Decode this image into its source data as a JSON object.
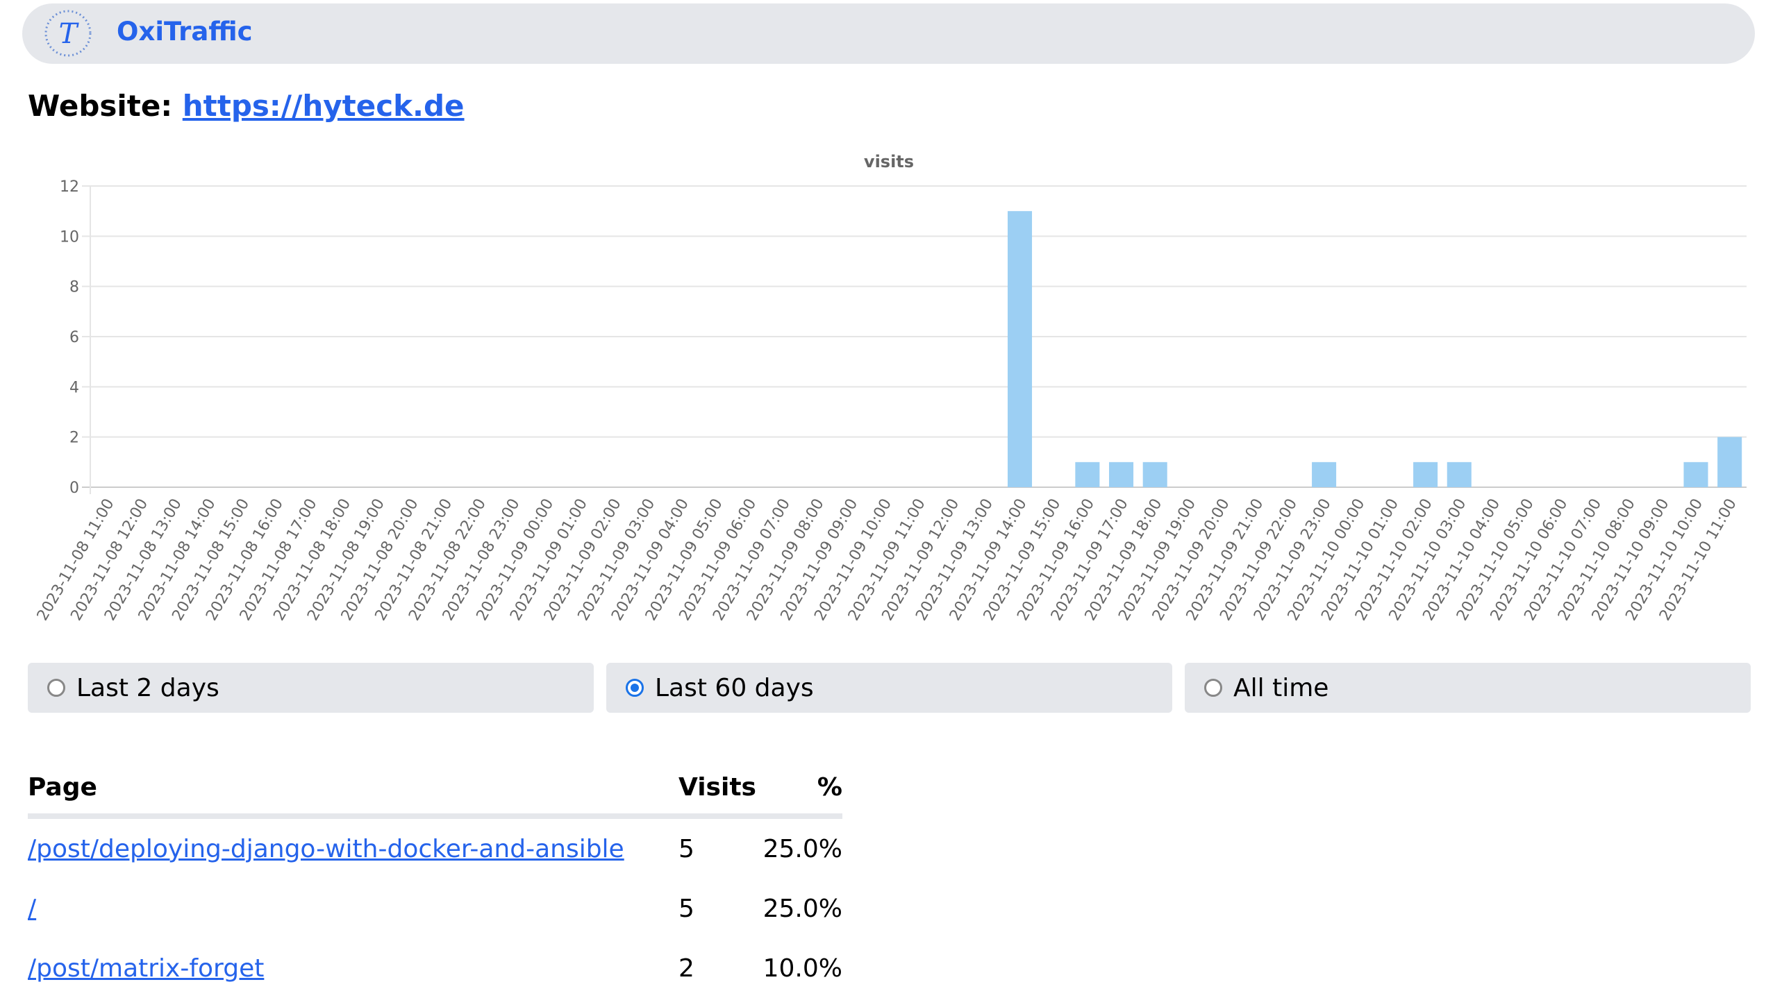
{
  "header": {
    "app_title": "OxiTraffic",
    "logo_icon": "T-logo-icon",
    "accent": "#2563eb"
  },
  "website": {
    "label": "Website:",
    "url": "https://hyteck.de"
  },
  "range_options": [
    {
      "label": "Last 2 days",
      "checked": false
    },
    {
      "label": "Last 60 days",
      "checked": true
    },
    {
      "label": "All time",
      "checked": false
    }
  ],
  "table": {
    "headers": {
      "page": "Page",
      "visits": "Visits",
      "percent": "%"
    },
    "rows": [
      {
        "page": "/post/deploying-django-with-docker-and-ansible",
        "visits": "5",
        "percent": "25.0%"
      },
      {
        "page": "/",
        "visits": "5",
        "percent": "25.0%"
      },
      {
        "page": "/post/matrix-forget",
        "visits": "2",
        "percent": "10.0%"
      }
    ]
  },
  "chart_data": {
    "type": "bar",
    "title": "visits",
    "xlabel": "",
    "ylabel": "",
    "ylim": [
      0,
      12
    ],
    "yticks": [
      0,
      2,
      4,
      6,
      8,
      10,
      12
    ],
    "grid": true,
    "bar_color": "#9ccff3",
    "categories": [
      "2023-11-08 11:00",
      "2023-11-08 12:00",
      "2023-11-08 13:00",
      "2023-11-08 14:00",
      "2023-11-08 15:00",
      "2023-11-08 16:00",
      "2023-11-08 17:00",
      "2023-11-08 18:00",
      "2023-11-08 19:00",
      "2023-11-08 20:00",
      "2023-11-08 21:00",
      "2023-11-08 22:00",
      "2023-11-08 23:00",
      "2023-11-09 00:00",
      "2023-11-09 01:00",
      "2023-11-09 02:00",
      "2023-11-09 03:00",
      "2023-11-09 04:00",
      "2023-11-09 05:00",
      "2023-11-09 06:00",
      "2023-11-09 07:00",
      "2023-11-09 08:00",
      "2023-11-09 09:00",
      "2023-11-09 10:00",
      "2023-11-09 11:00",
      "2023-11-09 12:00",
      "2023-11-09 13:00",
      "2023-11-09 14:00",
      "2023-11-09 15:00",
      "2023-11-09 16:00",
      "2023-11-09 17:00",
      "2023-11-09 18:00",
      "2023-11-09 19:00",
      "2023-11-09 20:00",
      "2023-11-09 21:00",
      "2023-11-09 22:00",
      "2023-11-09 23:00",
      "2023-11-10 00:00",
      "2023-11-10 01:00",
      "2023-11-10 02:00",
      "2023-11-10 03:00",
      "2023-11-10 04:00",
      "2023-11-10 05:00",
      "2023-11-10 06:00",
      "2023-11-10 07:00",
      "2023-11-10 08:00",
      "2023-11-10 09:00",
      "2023-11-10 10:00",
      "2023-11-10 11:00"
    ],
    "values": [
      0,
      0,
      0,
      0,
      0,
      0,
      0,
      0,
      0,
      0,
      0,
      0,
      0,
      0,
      0,
      0,
      0,
      0,
      0,
      0,
      0,
      0,
      0,
      0,
      0,
      0,
      0,
      11,
      0,
      1,
      1,
      1,
      0,
      0,
      0,
      0,
      1,
      0,
      0,
      1,
      1,
      0,
      0,
      0,
      0,
      0,
      0,
      1,
      2
    ]
  }
}
